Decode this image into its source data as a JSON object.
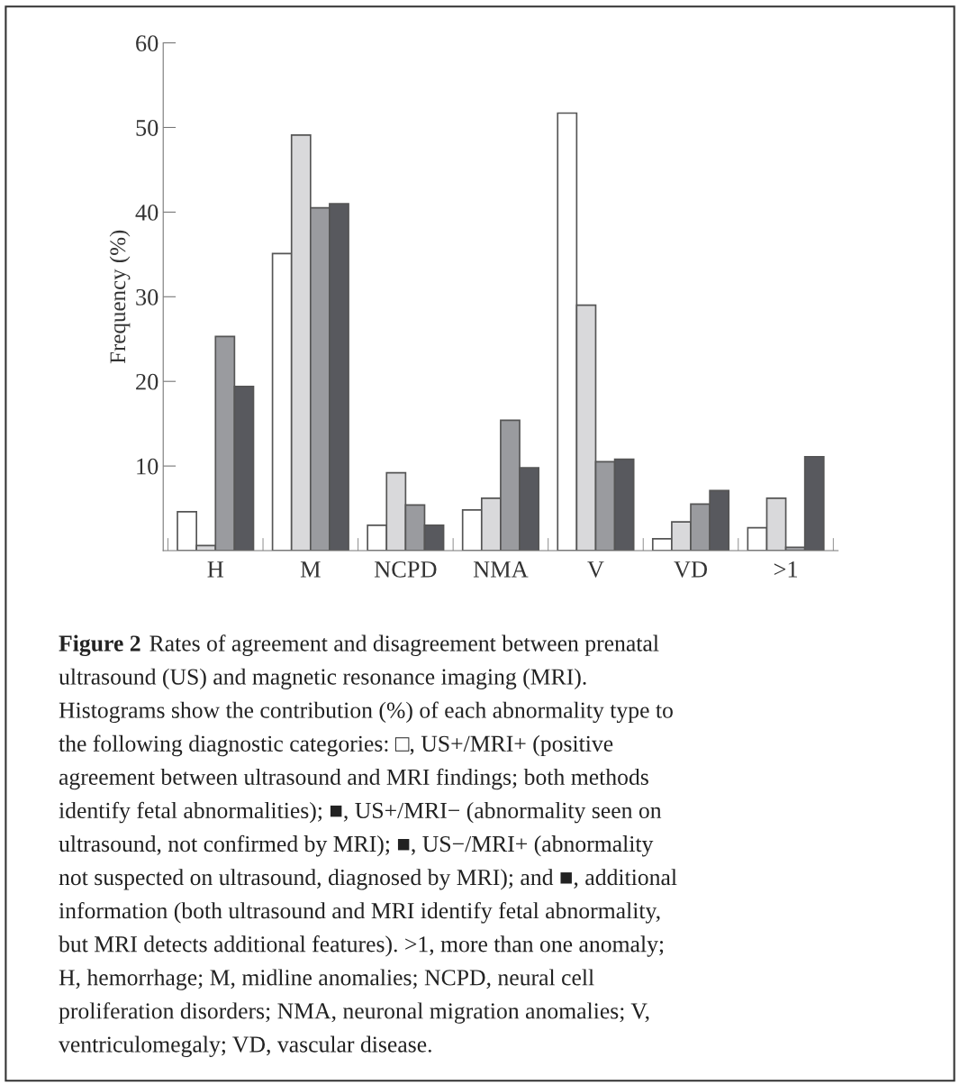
{
  "chart_data": {
    "type": "bar",
    "ylabel": "Frequency (%)",
    "categories": [
      "H",
      "M",
      "NCPD",
      "NMA",
      "V",
      "VD",
      ">1"
    ],
    "series": [
      {
        "color": "#ffffff",
        "values": [
          4.6,
          35.1,
          3.0,
          4.8,
          51.7,
          1.4,
          2.7
        ]
      },
      {
        "color": "#d9d9db",
        "values": [
          0.6,
          49.1,
          9.2,
          6.2,
          29.0,
          3.4,
          6.2
        ]
      },
      {
        "color": "#9a9b9f",
        "values": [
          25.3,
          40.5,
          5.4,
          15.4,
          10.5,
          5.5,
          0.4
        ]
      },
      {
        "color": "#58595e",
        "values": [
          19.4,
          41.0,
          3.0,
          9.8,
          10.8,
          7.1,
          11.1
        ]
      }
    ],
    "ylim": [
      0,
      60
    ],
    "yticks": [
      10,
      20,
      30,
      40,
      50,
      60
    ],
    "grid": false,
    "legend": false,
    "annotations": [
      "Figure 2",
      "Rates of agreement and disagreement between prenatal\nultrasound (US) and magnetic resonance imaging (MRI).\nHistograms show the contribution (%) of each abnormality type to\nthe following diagnostic categories: □, US+/MRI+ (positive\nagreement between ultrasound and MRI findings; both methods\nidentify fetal abnormalities); ■, US+/MRI− (abnormality seen on\nultrasound, not confirmed by MRI); ■, US−/MRI+ (abnormality\nnot suspected on ultrasound, diagnosed by MRI); and ■, additional\ninformation (both ultrasound and MRI identify fetal abnormality,\nbut MRI detects additional features). >1, more than one anomaly;\nH, hemorrhage; M, midline anomalies; NCPD, neural cell\nproliferation disorders; NMA, neuronal migration anomalies; V,\nventriculomegaly; VD, vascular disease."
    ]
  }
}
